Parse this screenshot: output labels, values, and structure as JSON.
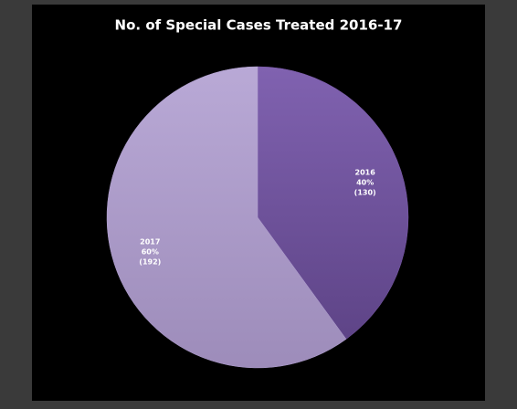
{
  "chart_data": {
    "type": "pie",
    "title": "No. of Special Cases Treated 2016-17",
    "categories": [
      "2016",
      "2017"
    ],
    "values": [
      40,
      60
    ],
    "value_labels": [
      "40%",
      "60%"
    ],
    "counts": [
      130,
      192
    ],
    "count_labels": [
      "(130)",
      "(192)"
    ],
    "colors": [
      "#7a5aa8",
      "#b2a1d1"
    ]
  }
}
